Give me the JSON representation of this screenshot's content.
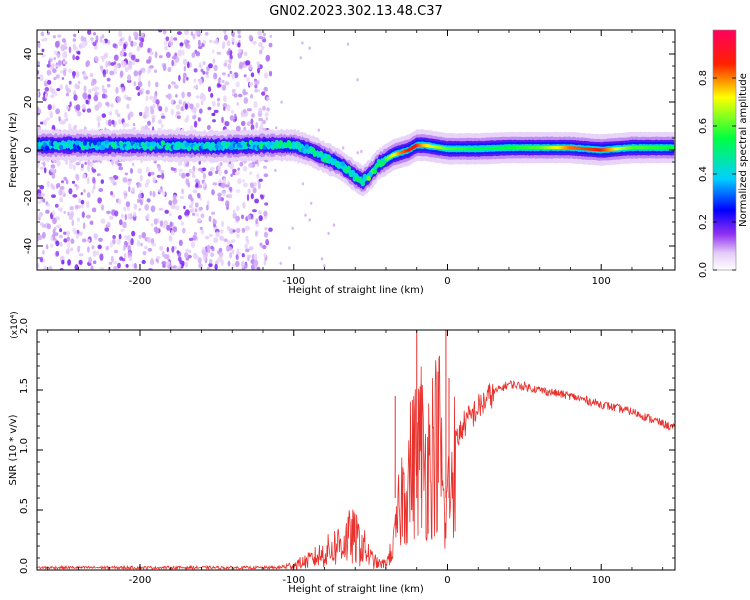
{
  "title": "GN02.2023.302.13.48.C37",
  "chart_data": [
    {
      "type": "heatmap",
      "xlabel": "Height of straight line (km)",
      "ylabel": "Frequency (Hz)",
      "xlim": [
        -267,
        148
      ],
      "ylim": [
        -50,
        50
      ],
      "xticks": [
        -200,
        -100,
        0,
        100
      ],
      "yticks": [
        -40,
        -20,
        0,
        20,
        40
      ],
      "colorbar": {
        "label": "Normalized spectral amplitude",
        "ticks": [
          0.0,
          0.2,
          0.4,
          0.6,
          0.8
        ],
        "range": [
          0.0,
          1.0
        ],
        "colormap": [
          "#ffffff",
          "#e4ccf8",
          "#8020f0",
          "#0000ff",
          "#00d0ff",
          "#00ff40",
          "#ffff00",
          "#ff0000",
          "#ff0060"
        ]
      },
      "ridge": {
        "x": [
          -267,
          -200,
          -150,
          -120,
          -100,
          -90,
          -80,
          -70,
          -60,
          -55,
          -50,
          -45,
          -40,
          -35,
          -30,
          -25,
          -20,
          -15,
          -10,
          -5,
          0,
          20,
          40,
          60,
          80,
          100,
          120,
          148
        ],
        "freq": [
          2,
          2,
          1.5,
          2,
          2,
          0,
          -3,
          -6,
          -11,
          -13,
          -10,
          -6,
          -4,
          -2,
          -1,
          0,
          2,
          2,
          1.5,
          1,
          0.5,
          0.5,
          1,
          1,
          1,
          0,
          1,
          1
        ],
        "strength": [
          0.35,
          0.4,
          0.4,
          0.4,
          0.45,
          0.45,
          0.45,
          0.45,
          0.5,
          0.5,
          0.5,
          0.5,
          0.6,
          0.7,
          0.8,
          0.85,
          0.85,
          0.75,
          0.7,
          0.65,
          0.6,
          0.55,
          0.55,
          0.6,
          0.8,
          0.85,
          0.6,
          0.55
        ]
      },
      "noise_region_x": [
        -267,
        -115
      ]
    },
    {
      "type": "line",
      "xlabel": "Height of straight line (km)",
      "ylabel": "SNR (10 * v/v)",
      "y_multiplier": "(x10⁴)",
      "xlim": [
        -267,
        148
      ],
      "ylim": [
        0.0,
        2.0
      ],
      "xticks": [
        -200,
        -100,
        0,
        100
      ],
      "yticks": [
        0.0,
        0.5,
        1.0,
        1.5,
        2.0
      ],
      "ytick_labels": [
        "0.0",
        "0.5",
        "1.0",
        "1.5",
        "2.0"
      ],
      "series": [
        {
          "color": "#e8312c",
          "x": [
            -267,
            -200,
            -150,
            -110,
            -100,
            -90,
            -80,
            -70,
            -62,
            -55,
            -50,
            -45,
            -40,
            -35,
            -30,
            -25,
            -20,
            -17,
            -15,
            -10,
            -5,
            -1,
            0,
            1,
            5,
            10,
            20,
            30,
            40,
            50,
            60,
            80,
            100,
            120,
            148
          ],
          "y": [
            0.02,
            0.02,
            0.02,
            0.02,
            0.04,
            0.08,
            0.14,
            0.22,
            0.28,
            0.2,
            0.1,
            0.05,
            0.05,
            0.2,
            0.6,
            0.8,
            0.95,
            1.05,
            0.85,
            1.0,
            1.1,
            0.2,
            1.0,
            0.6,
            1.05,
            1.2,
            1.35,
            1.48,
            1.55,
            1.53,
            1.5,
            1.45,
            1.38,
            1.32,
            1.18
          ]
        }
      ],
      "spikes": [
        {
          "x": -20,
          "y": 2.0
        },
        {
          "x": -17,
          "y": 1.55
        },
        {
          "x": -34,
          "y": 1.45
        },
        {
          "x": -1,
          "y": 2.0
        },
        {
          "x": 1,
          "y": 1.6
        }
      ]
    }
  ]
}
